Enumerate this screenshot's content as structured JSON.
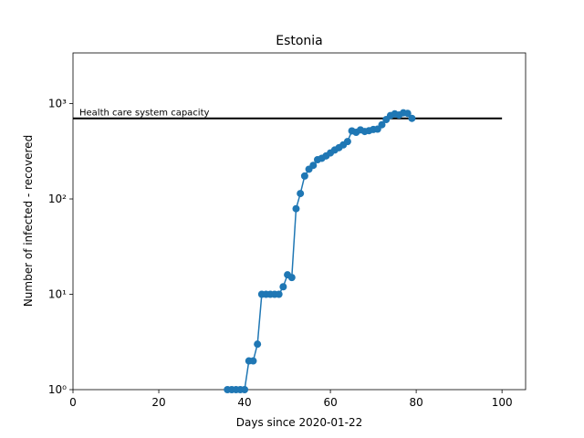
{
  "chart_data": {
    "type": "line",
    "title": "Estonia",
    "x_label": "Days since 2020-01-22",
    "y_label": "Number of infected - recovered",
    "log_y": true,
    "xlim": [
      0,
      105.5
    ],
    "ylim": [
      1,
      3400
    ],
    "xticks": [
      0,
      20,
      40,
      60,
      80,
      100
    ],
    "yticks": [
      {
        "value": 1,
        "label": "10⁰"
      },
      {
        "value": 10,
        "label": "10¹"
      },
      {
        "value": 100,
        "label": "10²"
      },
      {
        "value": 1000,
        "label": "10³"
      }
    ],
    "series": [
      {
        "color": "#1f77b4",
        "x": [
          36,
          37,
          38,
          39,
          40,
          41,
          42,
          43,
          44,
          45,
          46,
          47,
          48,
          49,
          50,
          51,
          52,
          53,
          54,
          55,
          56,
          57,
          58,
          59,
          60,
          61,
          62,
          63,
          64,
          65,
          66,
          67,
          68,
          69,
          70,
          71,
          72,
          73,
          74,
          75,
          76,
          77,
          78,
          79
        ],
        "values": [
          1,
          1,
          1,
          1,
          1,
          2,
          2,
          3,
          10,
          10,
          10,
          10,
          10,
          12,
          16,
          15,
          79,
          114,
          174,
          205,
          225,
          258,
          267,
          283,
          304,
          326,
          345,
          369,
          400,
          517,
          500,
          530,
          510,
          520,
          535,
          540,
          600,
          680,
          750,
          780,
          760,
          800,
          790,
          700
        ]
      }
    ],
    "hline": {
      "y": 700,
      "x": [
        0,
        100
      ],
      "color": "#000000",
      "label": "Health care system capacity"
    }
  }
}
